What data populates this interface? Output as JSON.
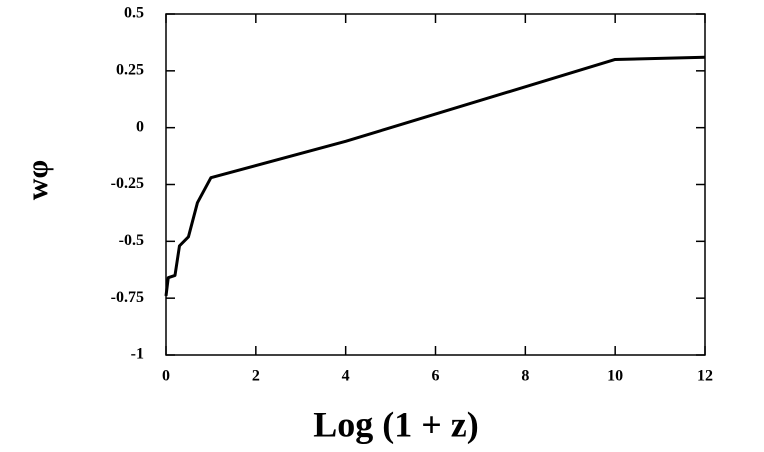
{
  "chart_data": {
    "type": "line",
    "xlabel": "Log (1 + z)",
    "ylabel": "wφ",
    "x": [
      0,
      0.05,
      0.2,
      0.3,
      0.5,
      0.7,
      1.0,
      4,
      10,
      12
    ],
    "series": [
      {
        "color": "#000000",
        "values": [
          -0.74,
          -0.66,
          -0.65,
          -0.52,
          -0.48,
          -0.33,
          -0.22,
          -0.06,
          0.3,
          0.31
        ]
      }
    ],
    "xlim": [
      0,
      12
    ],
    "ylim": [
      -1,
      0.5
    ],
    "xticks": [
      0,
      2,
      4,
      6,
      8,
      10,
      12
    ],
    "yticks": [
      -1,
      -0.75,
      -0.5,
      -0.25,
      0,
      0.25,
      0.5
    ]
  }
}
